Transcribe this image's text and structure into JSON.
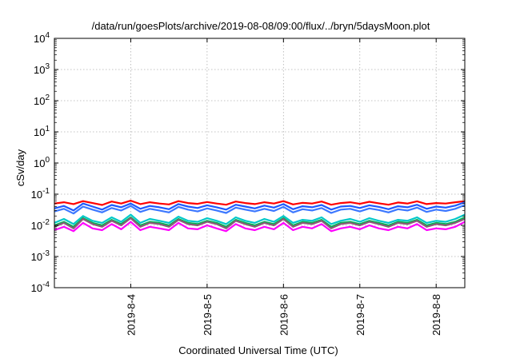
{
  "chart_data": {
    "type": "line",
    "title": "/data/run/goesPlots/archive/2019-08-08/09:00/flux/../bryn/5daysMoon.plot",
    "xlabel": "Coordinated Universal Time (UTC)",
    "ylabel": "cSv/day",
    "yscale": "log",
    "ylim": [
      0.0001,
      10000
    ],
    "xlim": [
      "2019-08-03 00:00",
      "2019-08-08 09:00"
    ],
    "grid": true,
    "y_ticks": [
      {
        "value": 0.0001,
        "base": "10",
        "exp": "-4"
      },
      {
        "value": 0.001,
        "base": "10",
        "exp": "-3"
      },
      {
        "value": 0.01,
        "base": "10",
        "exp": "-2"
      },
      {
        "value": 0.1,
        "base": "10",
        "exp": "-1"
      },
      {
        "value": 1,
        "base": "10",
        "exp": "0"
      },
      {
        "value": 10,
        "base": "10",
        "exp": "1"
      },
      {
        "value": 100,
        "base": "10",
        "exp": "2"
      },
      {
        "value": 1000,
        "base": "10",
        "exp": "3"
      },
      {
        "value": 10000,
        "base": "10",
        "exp": "4"
      }
    ],
    "x_ticks": [
      {
        "value": "2019-08-04 00:00",
        "label": "2019-8-4"
      },
      {
        "value": "2019-08-05 00:00",
        "label": "2019-8-5"
      },
      {
        "value": "2019-08-06 00:00",
        "label": "2019-8-6"
      },
      {
        "value": "2019-08-07 00:00",
        "label": "2019-8-7"
      },
      {
        "value": "2019-08-08 00:00",
        "label": "2019-8-8"
      }
    ],
    "x": [
      "2019-08-03 00:00",
      "2019-08-03 03:00",
      "2019-08-03 06:00",
      "2019-08-03 09:00",
      "2019-08-03 12:00",
      "2019-08-03 15:00",
      "2019-08-03 18:00",
      "2019-08-03 21:00",
      "2019-08-04 00:00",
      "2019-08-04 03:00",
      "2019-08-04 06:00",
      "2019-08-04 09:00",
      "2019-08-04 12:00",
      "2019-08-04 15:00",
      "2019-08-04 18:00",
      "2019-08-04 21:00",
      "2019-08-05 00:00",
      "2019-08-05 03:00",
      "2019-08-05 06:00",
      "2019-08-05 09:00",
      "2019-08-05 12:00",
      "2019-08-05 15:00",
      "2019-08-05 18:00",
      "2019-08-05 21:00",
      "2019-08-06 00:00",
      "2019-08-06 03:00",
      "2019-08-06 06:00",
      "2019-08-06 09:00",
      "2019-08-06 12:00",
      "2019-08-06 15:00",
      "2019-08-06 18:00",
      "2019-08-06 21:00",
      "2019-08-07 00:00",
      "2019-08-07 03:00",
      "2019-08-07 06:00",
      "2019-08-07 09:00",
      "2019-08-07 12:00",
      "2019-08-07 15:00",
      "2019-08-07 18:00",
      "2019-08-07 21:00",
      "2019-08-08 00:00",
      "2019-08-08 03:00",
      "2019-08-08 06:00",
      "2019-08-08 09:00"
    ],
    "series": [
      {
        "color": "#ff0000",
        "values": [
          0.05,
          0.055,
          0.048,
          0.06,
          0.052,
          0.045,
          0.058,
          0.05,
          0.062,
          0.048,
          0.055,
          0.05,
          0.047,
          0.06,
          0.052,
          0.049,
          0.056,
          0.05,
          0.046,
          0.058,
          0.052,
          0.048,
          0.055,
          0.05,
          0.06,
          0.047,
          0.053,
          0.05,
          0.058,
          0.046,
          0.052,
          0.055,
          0.049,
          0.057,
          0.051,
          0.046,
          0.054,
          0.05,
          0.059,
          0.048,
          0.052,
          0.05,
          0.055,
          0.06
        ]
      },
      {
        "color": "#1e5aff",
        "values": [
          0.035,
          0.042,
          0.03,
          0.05,
          0.04,
          0.032,
          0.045,
          0.038,
          0.05,
          0.034,
          0.042,
          0.038,
          0.033,
          0.048,
          0.04,
          0.036,
          0.044,
          0.038,
          0.032,
          0.046,
          0.04,
          0.035,
          0.043,
          0.037,
          0.048,
          0.033,
          0.041,
          0.038,
          0.045,
          0.032,
          0.04,
          0.042,
          0.036,
          0.044,
          0.039,
          0.033,
          0.041,
          0.038,
          0.046,
          0.034,
          0.04,
          0.037,
          0.043,
          0.055
        ]
      },
      {
        "color": "#3c78ff",
        "values": [
          0.028,
          0.034,
          0.024,
          0.04,
          0.032,
          0.026,
          0.036,
          0.03,
          0.042,
          0.027,
          0.034,
          0.03,
          0.026,
          0.039,
          0.032,
          0.028,
          0.035,
          0.03,
          0.025,
          0.037,
          0.032,
          0.028,
          0.034,
          0.029,
          0.039,
          0.026,
          0.033,
          0.03,
          0.036,
          0.025,
          0.032,
          0.034,
          0.028,
          0.035,
          0.031,
          0.026,
          0.033,
          0.03,
          0.037,
          0.027,
          0.032,
          0.029,
          0.034,
          0.045
        ]
      },
      {
        "color": "#00c8c8",
        "values": [
          0.012,
          0.016,
          0.011,
          0.02,
          0.014,
          0.012,
          0.018,
          0.013,
          0.022,
          0.012,
          0.016,
          0.014,
          0.012,
          0.019,
          0.014,
          0.013,
          0.017,
          0.014,
          0.011,
          0.018,
          0.014,
          0.012,
          0.016,
          0.013,
          0.02,
          0.012,
          0.015,
          0.014,
          0.018,
          0.011,
          0.014,
          0.016,
          0.013,
          0.017,
          0.014,
          0.012,
          0.015,
          0.014,
          0.018,
          0.012,
          0.014,
          0.013,
          0.016,
          0.022
        ]
      },
      {
        "color": "#00b450",
        "values": [
          0.01,
          0.013,
          0.009,
          0.017,
          0.012,
          0.01,
          0.015,
          0.011,
          0.018,
          0.01,
          0.013,
          0.012,
          0.01,
          0.016,
          0.012,
          0.011,
          0.014,
          0.012,
          0.009,
          0.015,
          0.012,
          0.01,
          0.013,
          0.011,
          0.017,
          0.01,
          0.013,
          0.012,
          0.015,
          0.009,
          0.012,
          0.013,
          0.011,
          0.014,
          0.012,
          0.01,
          0.013,
          0.012,
          0.015,
          0.01,
          0.012,
          0.011,
          0.013,
          0.018
        ]
      },
      {
        "color": "#8c5a78",
        "values": [
          0.009,
          0.012,
          0.008,
          0.016,
          0.011,
          0.009,
          0.014,
          0.01,
          0.017,
          0.009,
          0.012,
          0.011,
          0.009,
          0.015,
          0.011,
          0.01,
          0.013,
          0.011,
          0.008,
          0.014,
          0.011,
          0.009,
          0.012,
          0.01,
          0.016,
          0.009,
          0.012,
          0.011,
          0.014,
          0.008,
          0.011,
          0.012,
          0.01,
          0.013,
          0.011,
          0.009,
          0.012,
          0.011,
          0.014,
          0.009,
          0.011,
          0.01,
          0.012,
          0.016
        ]
      },
      {
        "color": "#ff00ff",
        "values": [
          0.007,
          0.009,
          0.0065,
          0.012,
          0.008,
          0.007,
          0.011,
          0.0075,
          0.013,
          0.007,
          0.009,
          0.008,
          0.007,
          0.012,
          0.008,
          0.0075,
          0.01,
          0.008,
          0.0065,
          0.011,
          0.008,
          0.007,
          0.009,
          0.0075,
          0.012,
          0.007,
          0.009,
          0.008,
          0.011,
          0.0065,
          0.008,
          0.009,
          0.0075,
          0.01,
          0.008,
          0.007,
          0.009,
          0.008,
          0.011,
          0.007,
          0.008,
          0.0075,
          0.009,
          0.013
        ]
      }
    ]
  }
}
